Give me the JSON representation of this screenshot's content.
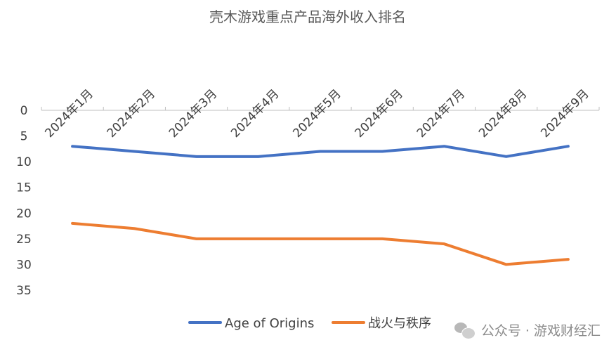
{
  "chart_data": {
    "type": "line",
    "title": "壳木游戏重点产品海外收入排名",
    "categories": [
      "2024年1月",
      "2024年2月",
      "2024年3月",
      "2024年4月",
      "2024年5月",
      "2024年6月",
      "2024年7月",
      "2024年8月",
      "2024年9月"
    ],
    "series": [
      {
        "name": "Age of Origins",
        "color": "#4472C4",
        "values": [
          7,
          8,
          9,
          9,
          8,
          8,
          7,
          9,
          7
        ]
      },
      {
        "name": "战火与秩序",
        "color": "#ED7D31",
        "values": [
          22,
          23,
          25,
          25,
          25,
          25,
          26,
          30,
          29
        ]
      }
    ],
    "yticks": [
      0,
      5,
      10,
      15,
      20,
      25,
      30,
      35
    ],
    "ylim": [
      0,
      35
    ],
    "y_reversed": true,
    "x_axis_position": "top",
    "grid": false,
    "legend_position": "bottom"
  },
  "watermark": {
    "text": "公众号 · 游戏财经汇",
    "icon": "wechat-icon"
  }
}
